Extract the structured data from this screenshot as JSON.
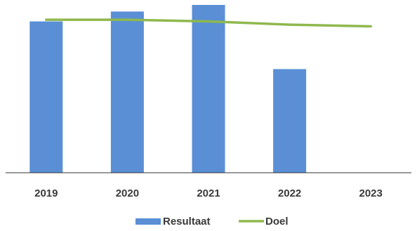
{
  "colors": {
    "bar": "#5a8fd6",
    "line": "#8fb84e",
    "axis": "#333333",
    "text": "#3a3a3a"
  },
  "chart_data": {
    "type": "bar",
    "categories": [
      "2019",
      "2020",
      "2021",
      "2022",
      "2023"
    ],
    "series": [
      {
        "name": "Resultaat",
        "type": "bar",
        "values": [
          92,
          98,
          102,
          63,
          null
        ]
      },
      {
        "name": "Doel",
        "type": "line",
        "values": [
          93,
          93,
          92,
          90,
          89
        ]
      }
    ],
    "ylim": [
      0,
      105
    ],
    "grid": false,
    "legend": "bottom"
  }
}
